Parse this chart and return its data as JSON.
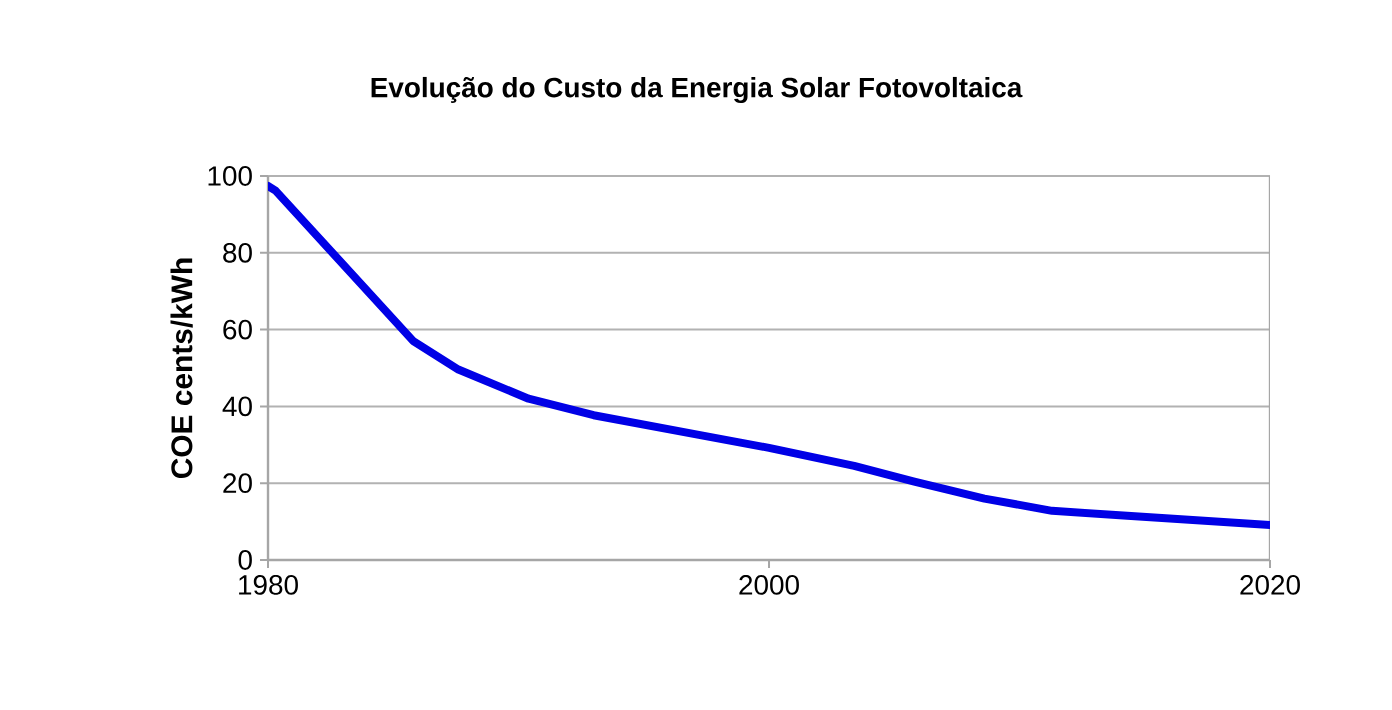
{
  "chart_data": {
    "type": "line",
    "title": "Evolução do Custo da Energia Solar Fotovoltaica",
    "ylabel": "COE cents/kWh",
    "x": [
      1980,
      1980.3,
      1985.8,
      1987.6,
      1990.4,
      1993,
      1997.2,
      2000,
      2003.4,
      2005.8,
      2008.6,
      2011.3,
      2014.3,
      2020
    ],
    "series": [
      {
        "color": "#0000e6",
        "values": [
          97.4,
          96.2,
          57,
          49.6,
          42,
          37.7,
          32.6,
          29.2,
          24.5,
          20.4,
          16,
          12.8,
          11.5,
          9.1
        ]
      }
    ],
    "xlim": [
      1980,
      2020
    ],
    "xticks": [
      1980,
      2000,
      2020
    ],
    "ylim": [
      0,
      100
    ],
    "yticks": [
      0,
      20,
      40,
      60,
      80,
      100
    ],
    "grid": "y",
    "marker": "none",
    "line_style": "solid"
  }
}
